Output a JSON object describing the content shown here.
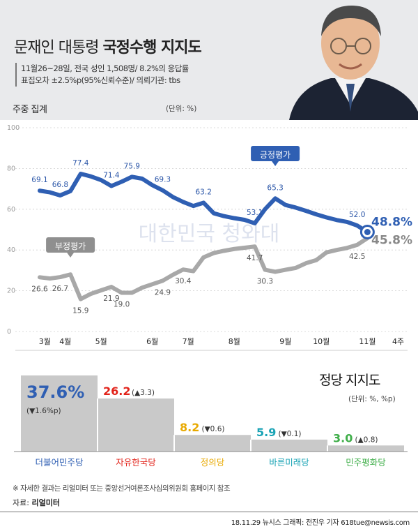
{
  "header": {
    "title_part1": "문재인 대통령",
    "title_part2": "국정수행 지지도",
    "info_line1": "11월26~28일, 전국 성인 1,508명/ 8.2%의 응답률",
    "info_line2": "표집오차 ±2.5%p(95%신뢰수준)/ 의뢰기관: tbs"
  },
  "weekly_label": "주중 집계",
  "unit_label": "(단위: %)",
  "watermark_text": "대한민국 청와대",
  "chart_data": [
    {
      "type": "line",
      "ylim": [
        0,
        100
      ],
      "yticks": [
        0,
        20,
        40,
        60,
        80,
        100
      ],
      "month_labels": [
        {
          "label": "3월",
          "index": 0.5
        },
        {
          "label": "4월",
          "index": 2.5
        },
        {
          "label": "5월",
          "index": 6
        },
        {
          "label": "6월",
          "index": 11
        },
        {
          "label": "7월",
          "index": 14.5
        },
        {
          "label": "8월",
          "index": 19
        },
        {
          "label": "9월",
          "index": 24
        },
        {
          "label": "10월",
          "index": 27.5
        },
        {
          "label": "11월",
          "index": 32
        },
        {
          "label": "4주",
          "index": 35
        }
      ],
      "series": [
        {
          "name": "긍정평가",
          "color": "#2f5fb3",
          "values": [
            69.1,
            68.3,
            66.8,
            68.9,
            77.4,
            76.1,
            74.3,
            71.4,
            73.5,
            75.9,
            75.0,
            71.8,
            69.3,
            66.0,
            63.6,
            61.6,
            63.2,
            58.0,
            56.6,
            55.6,
            54.8,
            53.1,
            60.0,
            65.3,
            62.1,
            60.8,
            59.2,
            57.5,
            56.0,
            54.7,
            53.8,
            52.0,
            48.8
          ],
          "labels": [
            {
              "i": 0,
              "text": "69.1"
            },
            {
              "i": 2,
              "text": "66.8"
            },
            {
              "i": 4,
              "text": "77.4"
            },
            {
              "i": 7,
              "text": "71.4"
            },
            {
              "i": 9,
              "text": "75.9"
            },
            {
              "i": 12,
              "text": "69.3"
            },
            {
              "i": 16,
              "text": "63.2"
            },
            {
              "i": 21,
              "text": "53.1"
            },
            {
              "i": 23,
              "text": "65.3"
            },
            {
              "i": 31,
              "text": "52.0"
            }
          ],
          "final_label": "48.8%"
        },
        {
          "name": "부정평가",
          "color": "#a8a8a8",
          "values": [
            26.6,
            26.0,
            26.7,
            28.0,
            15.9,
            18.5,
            20.2,
            21.9,
            19.0,
            19.0,
            21.5,
            24.9,
            27.8,
            30.4,
            29.6,
            36.4,
            38.5,
            39.6,
            40.5,
            41.7,
            30.3,
            29.3,
            30.3,
            31.2,
            33.5,
            35.0,
            38.8,
            40.0,
            41.0,
            42.5,
            45.8
          ],
          "x_index": [
            0,
            1,
            2,
            3,
            4,
            5,
            6,
            7,
            8,
            9,
            10,
            12,
            13,
            14,
            15,
            16,
            17,
            18,
            19,
            21,
            22,
            23,
            24,
            25,
            26,
            27,
            28,
            29,
            30,
            31,
            32
          ],
          "labels": [
            {
              "i": 0,
              "text": "26.6"
            },
            {
              "i": 2,
              "text": "26.7"
            },
            {
              "i": 4,
              "text": "15.9"
            },
            {
              "i": 7,
              "text": "21.9"
            },
            {
              "i": 8,
              "text": "19.0"
            },
            {
              "i": 11,
              "text": "24.9"
            },
            {
              "i": 13,
              "text": "30.4"
            },
            {
              "i": 19,
              "text": "41.7"
            },
            {
              "i": 20,
              "text": "30.3"
            },
            {
              "i": 29,
              "text": "42.5"
            }
          ],
          "final_label": "45.8%"
        }
      ]
    },
    {
      "type": "bar",
      "title": "정당 지지도",
      "unit": "(단위: %, %p)",
      "categories": [
        "더불어민주당",
        "자유한국당",
        "정의당",
        "바른미래당",
        "민주평화당"
      ],
      "values": [
        37.6,
        26.2,
        8.2,
        5.9,
        3.0
      ],
      "value_labels": [
        "37.6%",
        "26.2",
        "8.2",
        "5.9",
        "3.0"
      ],
      "change_labels": [
        "(▼1.6%p)",
        "(▲3.3)",
        "(▼0.6)",
        "(▼0.1)",
        "(▲0.8)"
      ],
      "colors": [
        "#2f5fb3",
        "#e2231a",
        "#e8a900",
        "#1aa3b5",
        "#3fae49"
      ]
    }
  ],
  "footnote": "※ 자세한 결과는 리얼미터 또는 중앙선거여론조사심의위원회 홈페이지 참조",
  "source_prefix": "자료:",
  "source_name": "리얼미터",
  "credit": "18.11.29  뉴시스 그래픽: 전진우 기자  618tue@newsis.com"
}
